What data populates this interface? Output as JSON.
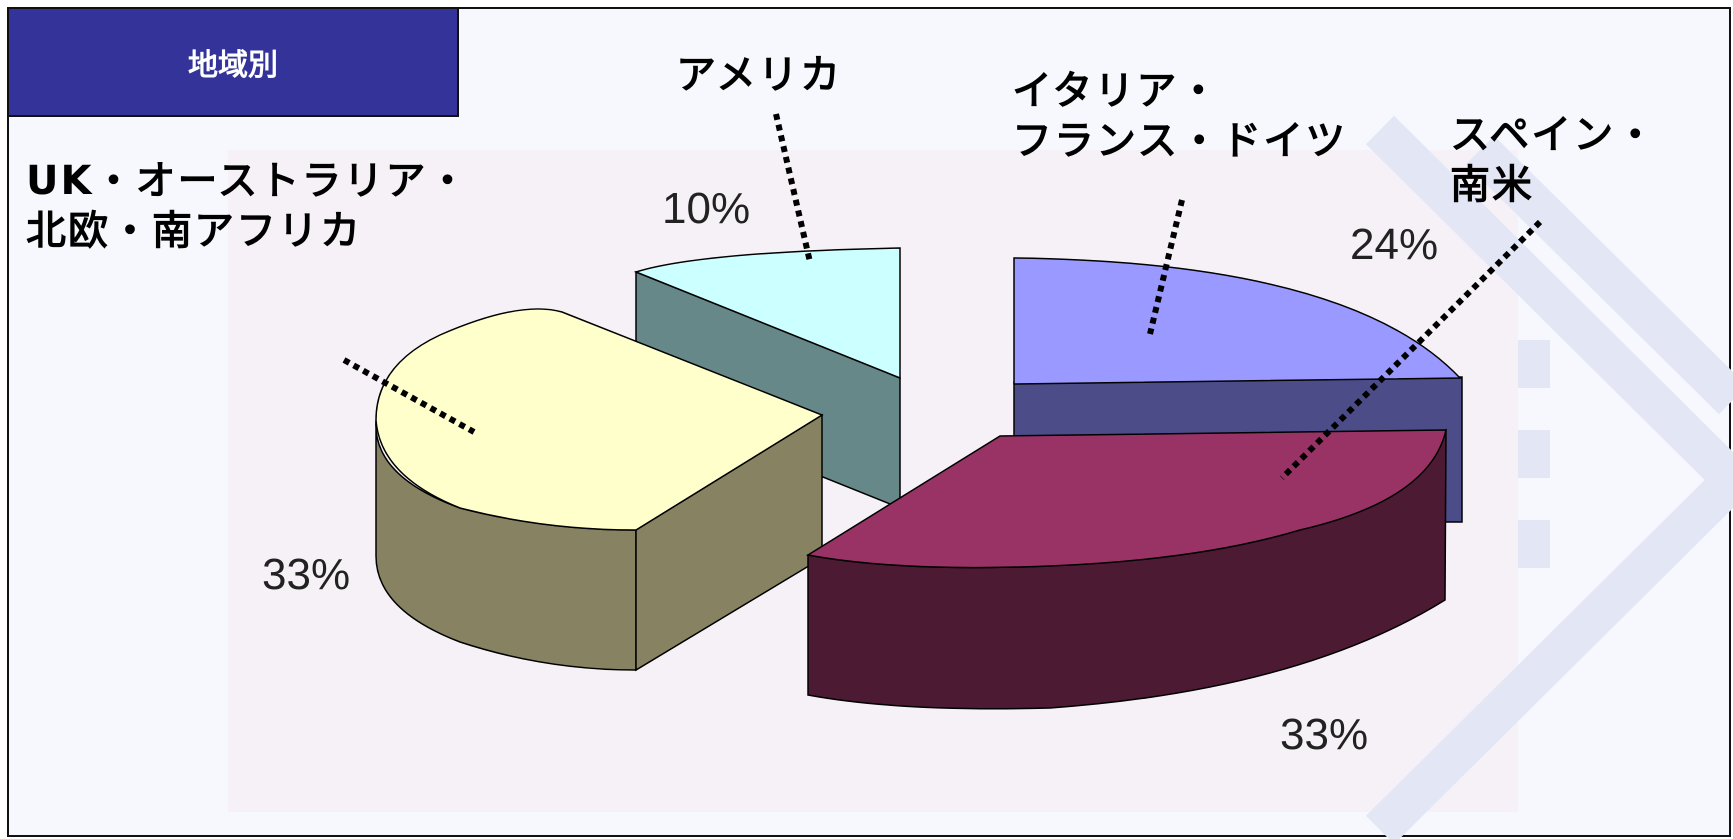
{
  "header": {
    "title": "地域別"
  },
  "chart_data": {
    "type": "pie",
    "title": "地域別",
    "slices": [
      {
        "label_lines": [
          "アメリカ"
        ],
        "value": 10,
        "value_label": "10%",
        "color": "#ccffff",
        "side_color": "#668888"
      },
      {
        "label_lines": [
          "イタリア・",
          "フランス・ドイツ"
        ],
        "value": 24,
        "value_label": "24%",
        "color": "#9999ff",
        "side_color": "#4c4c88"
      },
      {
        "label_lines": [
          "スペイン・",
          "南米"
        ],
        "value": 33,
        "value_label": "33%",
        "color": "#993366",
        "side_color": "#4d1a33"
      },
      {
        "label_lines": [
          "UK・オーストラリア・",
          "北欧・南アフリカ"
        ],
        "value": 33,
        "value_label": "33%",
        "color": "#ffffcc",
        "side_color": "#868262"
      }
    ]
  }
}
